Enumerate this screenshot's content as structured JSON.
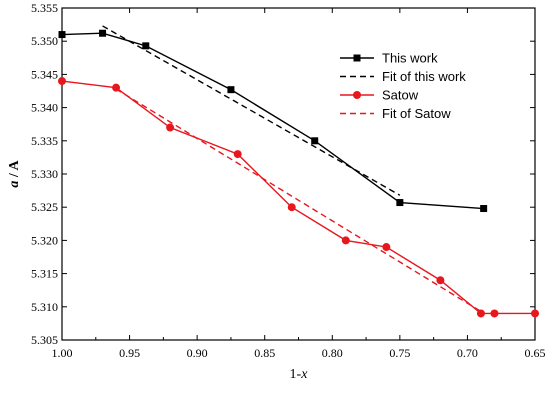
{
  "chart_data": {
    "type": "line",
    "xlabel_main": "1-",
    "xlabel_var": "x",
    "ylabel_var": "a",
    "ylabel_unit": " / A",
    "xlim": [
      1.0,
      0.65
    ],
    "ylim": [
      5.305,
      5.355
    ],
    "x_reversed": true,
    "xticks": [
      1.0,
      0.95,
      0.9,
      0.85,
      0.8,
      0.75,
      0.7,
      0.65
    ],
    "xtick_labels": [
      "1.00",
      "0.95",
      "0.90",
      "0.85",
      "0.80",
      "0.75",
      "0.70",
      "0.65"
    ],
    "yticks": [
      5.305,
      5.31,
      5.315,
      5.32,
      5.325,
      5.33,
      5.335,
      5.34,
      5.345,
      5.35,
      5.355
    ],
    "ytick_labels": [
      "5.305",
      "5.310",
      "5.315",
      "5.320",
      "5.325",
      "5.330",
      "5.335",
      "5.340",
      "5.345",
      "5.350",
      "5.355"
    ],
    "grid": false,
    "legend_placement": "top-right",
    "series": [
      {
        "name": "This work",
        "color": "#000000",
        "marker": "square",
        "style": "solid",
        "x": [
          1.0,
          0.97,
          0.938,
          0.875,
          0.813,
          0.75,
          0.688
        ],
        "y": [
          5.351,
          5.3512,
          5.3493,
          5.3427,
          5.335,
          5.3257,
          5.3248
        ]
      },
      {
        "name": "Fit of this work",
        "color": "#000000",
        "marker": "none",
        "style": "dashed",
        "x": [
          0.97,
          0.75
        ],
        "y": [
          5.3523,
          5.3268
        ]
      },
      {
        "name": "Satow",
        "color": "#e8171e",
        "marker": "circle",
        "style": "solid",
        "x": [
          1.0,
          0.96,
          0.92,
          0.87,
          0.83,
          0.79,
          0.76,
          0.72,
          0.69,
          0.68,
          0.65
        ],
        "y": [
          5.344,
          5.343,
          5.337,
          5.333,
          5.325,
          5.32,
          5.319,
          5.314,
          5.309,
          5.309,
          5.309
        ]
      },
      {
        "name": "Fit of Satow",
        "color": "#e8171e",
        "marker": "none",
        "style": "dashed",
        "x": [
          0.96,
          0.69
        ],
        "y": [
          5.3428,
          5.3093
        ]
      }
    ]
  }
}
